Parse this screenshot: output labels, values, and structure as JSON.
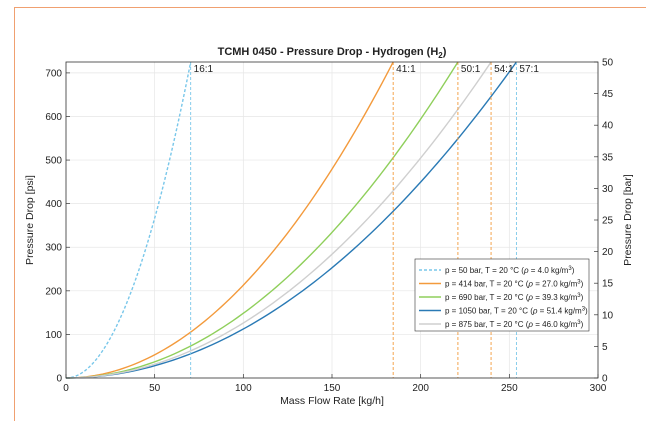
{
  "colors": {
    "cyan": "#79c7ea",
    "orange": "#f39a3c",
    "green": "#8fcf5b",
    "gray": "#cfcfcf",
    "blue": "#2a7ab5",
    "frame": "#f0a070"
  },
  "chart_data": {
    "type": "line",
    "title": "TCMH 0450 - Pressure Drop - Hydrogen (H",
    "title_sub": "2",
    "title_end": ")",
    "xlabel": "Mass Flow Rate [kg/h]",
    "ylabel_left": "Pressure Drop [psi]",
    "ylabel_right": "Pressure Drop [bar]",
    "xlim": [
      0,
      300
    ],
    "ylim_left": [
      0,
      725
    ],
    "ylim_right": [
      0,
      50
    ],
    "grid": true,
    "legend_position": "bottom-right",
    "x_ticks": [
      0,
      50,
      100,
      150,
      200,
      250,
      300
    ],
    "y_ticks_left": [
      0,
      100,
      200,
      300,
      400,
      500,
      600,
      700
    ],
    "y_ticks_right": [
      0,
      5,
      10,
      15,
      20,
      25,
      30,
      35,
      40,
      45,
      50
    ],
    "series": [
      {
        "name": "p = 50 bar, T = 20 °C (",
        "rho": "ρ",
        "name_mid": " = 4.0 kg/m",
        "name_sup": "3",
        "name_end": ")",
        "color": "#79c7ea",
        "dashed": true,
        "k": 0.1467,
        "exponent": 2,
        "x_end": 70.3
      },
      {
        "name": "p = 414 bar, T = 20 °C (",
        "rho": "ρ",
        "name_mid": " = 27.0 kg/m",
        "name_sup": "3",
        "name_end": ")",
        "color": "#f39a3c",
        "dashed": false,
        "k": 0.0213,
        "exponent": 2,
        "x_end": 184.5
      },
      {
        "name": "p = 690 bar, T = 20 °C (",
        "rho": "ρ",
        "name_mid": " = 39.3 kg/m",
        "name_sup": "3",
        "name_end": ")",
        "color": "#8fcf5b",
        "dashed": false,
        "k": 0.01485,
        "exponent": 2,
        "x_end": 221
      },
      {
        "name": "p = 1050 bar, T = 20 °C (",
        "rho": "ρ",
        "name_mid": " = 51.4 kg/m",
        "name_sup": "3",
        "name_end": ")",
        "color": "#2a7ab5",
        "dashed": false,
        "k": 0.01124,
        "exponent": 2,
        "x_end": 254
      },
      {
        "name": "p = 875 bar, T = 20 °C (",
        "rho": "ρ",
        "name_mid": " = 46.0 kg/m",
        "name_sup": "3",
        "name_end": ")",
        "color": "#cfcfcf",
        "dashed": false,
        "k": 0.01262,
        "exponent": 2,
        "x_end": 239.7
      }
    ],
    "vlines": [
      {
        "x": 70.3,
        "label": "16:1",
        "color": "#79c7ea"
      },
      {
        "x": 184.5,
        "label": "41:1",
        "color": "#f39a3c"
      },
      {
        "x": 221,
        "label": "50:1",
        "color": "#f39a3c"
      },
      {
        "x": 239.7,
        "label": "54:1",
        "color": "#f39a3c"
      },
      {
        "x": 254,
        "label": "57:1",
        "color": "#79c7ea"
      }
    ]
  }
}
